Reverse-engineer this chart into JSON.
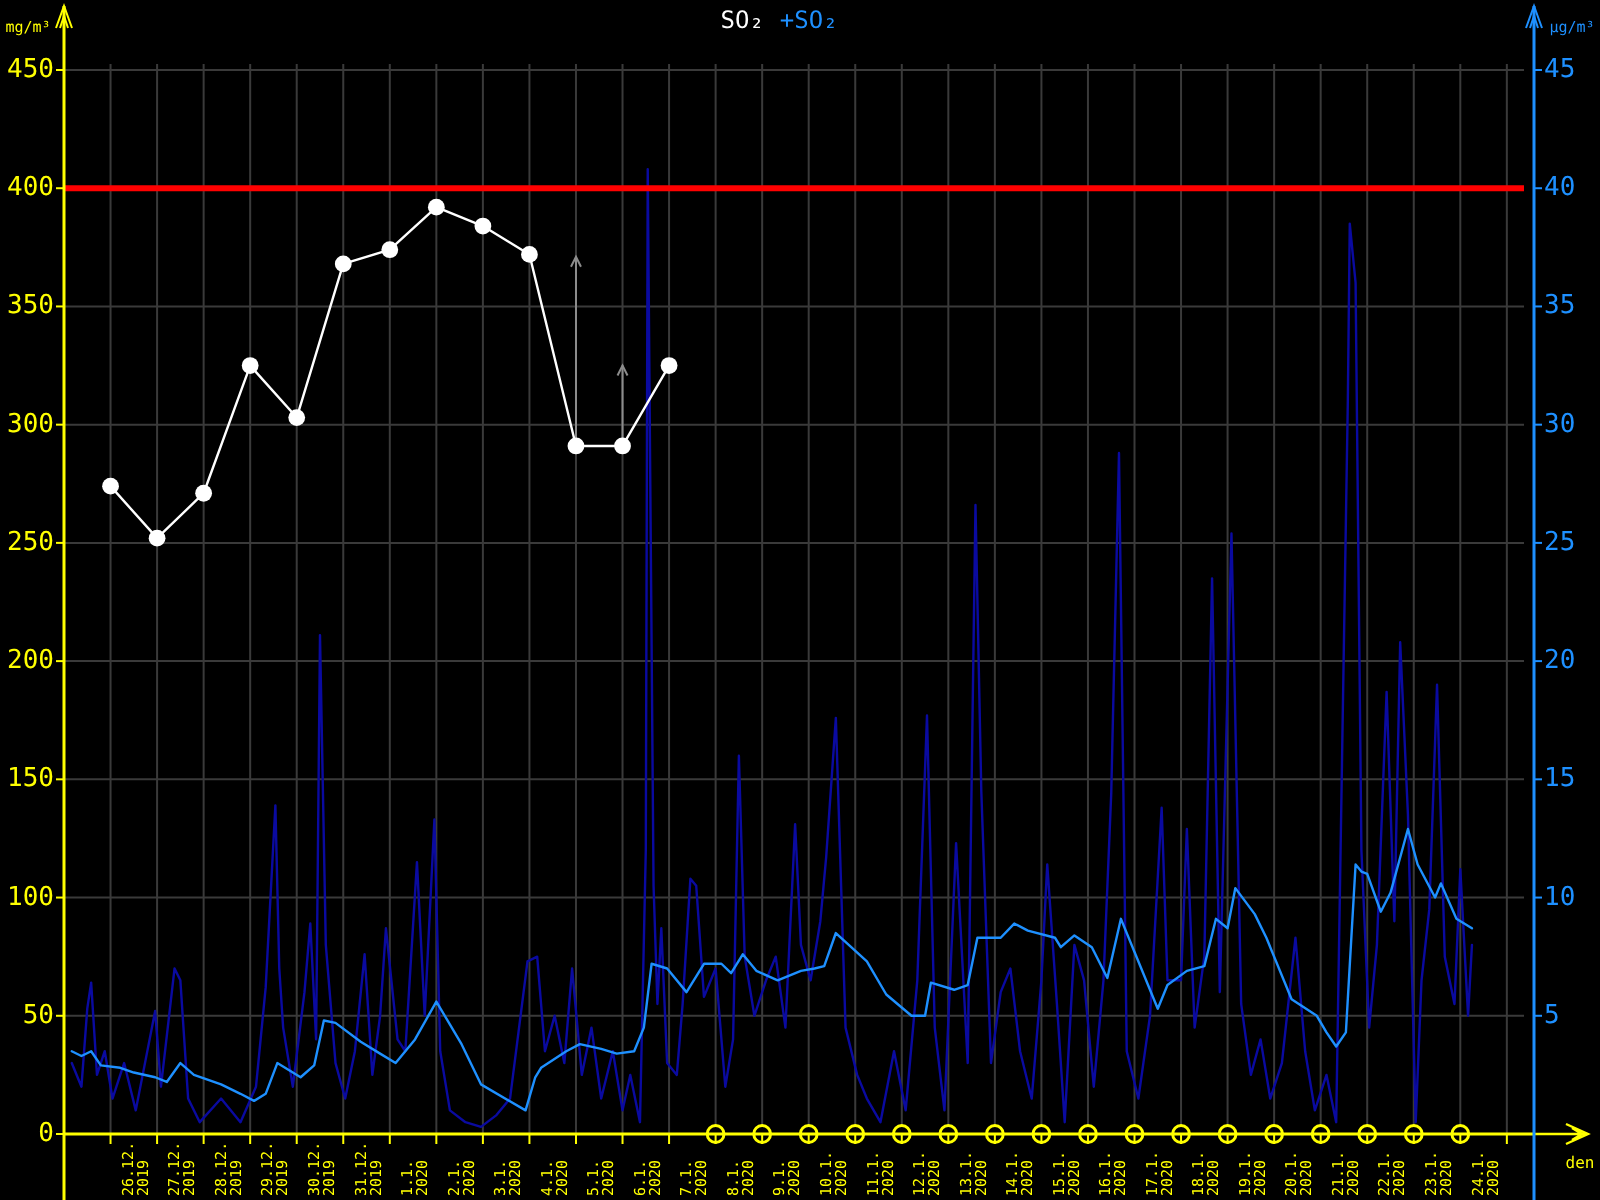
{
  "chart_data": {
    "type": "line",
    "legend": "top",
    "grid": true,
    "xlabel": "den",
    "ylabel": "mg/m³",
    "y2label": "µg/m³",
    "xlim": [
      "2019-12-25T00:00",
      "2020-01-25T14:00"
    ],
    "xticks": [
      {
        "value": "2019-12-26",
        "label": null
      },
      {
        "value": "2019-12-26T12:00",
        "label": "26.12.2019"
      },
      {
        "value": "2019-12-27",
        "label": null
      },
      {
        "value": "2019-12-27T12:00",
        "label": "27.12.2019"
      },
      {
        "value": "2019-12-28",
        "label": null
      },
      {
        "value": "2019-12-28T12:00",
        "label": "28.12.2019"
      },
      {
        "value": "2019-12-29",
        "label": null
      },
      {
        "value": "2019-12-29T12:00",
        "label": "29.12.2019"
      },
      {
        "value": "2019-12-30",
        "label": null
      },
      {
        "value": "2019-12-30T12:00",
        "label": "30.12.2019"
      },
      {
        "value": "2019-12-31",
        "label": null
      },
      {
        "value": "2019-12-31T12:00",
        "label": "31.12.2019"
      },
      {
        "value": "2020-01-01",
        "label": null
      },
      {
        "value": "2020-01-01T12:00",
        "label": "1.1.2020"
      },
      {
        "value": "2020-01-02",
        "label": null
      },
      {
        "value": "2020-01-02T12:00",
        "label": "2.1.2020"
      },
      {
        "value": "2020-01-03",
        "label": null
      },
      {
        "value": "2020-01-03T12:00",
        "label": "3.1.2020"
      },
      {
        "value": "2020-01-04",
        "label": null
      },
      {
        "value": "2020-01-04T12:00",
        "label": "4.1.2020"
      },
      {
        "value": "2020-01-05",
        "label": null
      },
      {
        "value": "2020-01-05T12:00",
        "label": "5.1.2020"
      },
      {
        "value": "2020-01-06",
        "label": null
      },
      {
        "value": "2020-01-06T12:00",
        "label": "6.1.2020"
      },
      {
        "value": "2020-01-07",
        "label": null
      },
      {
        "value": "2020-01-07T12:00",
        "label": "7.1.2020"
      },
      {
        "value": "2020-01-08",
        "label": null
      },
      {
        "value": "2020-01-08T12:00",
        "label": "8.1.2020"
      },
      {
        "value": "2020-01-09",
        "label": null
      },
      {
        "value": "2020-01-09T12:00",
        "label": "9.1.2020"
      },
      {
        "value": "2020-01-10",
        "label": null
      },
      {
        "value": "2020-01-10T12:00",
        "label": "10.1.2020"
      },
      {
        "value": "2020-01-11",
        "label": null
      },
      {
        "value": "2020-01-11T12:00",
        "label": "11.1.2020"
      },
      {
        "value": "2020-01-12",
        "label": null
      },
      {
        "value": "2020-01-12T12:00",
        "label": "12.1.2020"
      },
      {
        "value": "2020-01-13",
        "label": null
      },
      {
        "value": "2020-01-13T12:00",
        "label": "13.1.2020"
      },
      {
        "value": "2020-01-14",
        "label": null
      },
      {
        "value": "2020-01-14T12:00",
        "label": "14.1.2020"
      },
      {
        "value": "2020-01-15",
        "label": null
      },
      {
        "value": "2020-01-15T12:00",
        "label": "15.1.2020"
      },
      {
        "value": "2020-01-16",
        "label": null
      },
      {
        "value": "2020-01-16T12:00",
        "label": "16.1.2020"
      },
      {
        "value": "2020-01-17",
        "label": null
      },
      {
        "value": "2020-01-17T12:00",
        "label": "17.1.2020"
      },
      {
        "value": "2020-01-18",
        "label": null
      },
      {
        "value": "2020-01-18T12:00",
        "label": "18.1.2020"
      },
      {
        "value": "2020-01-19",
        "label": null
      },
      {
        "value": "2020-01-19T12:00",
        "label": "19.1.2020"
      },
      {
        "value": "2020-01-20",
        "label": null
      },
      {
        "value": "2020-01-20T12:00",
        "label": "20.1.2020"
      },
      {
        "value": "2020-01-21",
        "label": null
      },
      {
        "value": "2020-01-21T12:00",
        "label": "21.1.2020"
      },
      {
        "value": "2020-01-22",
        "label": null
      },
      {
        "value": "2020-01-22T12:00",
        "label": "22.1.2020"
      },
      {
        "value": "2020-01-23",
        "label": null
      },
      {
        "value": "2020-01-23T12:00",
        "label": "23.1.2020"
      },
      {
        "value": "2020-01-24",
        "label": null
      },
      {
        "value": "2020-01-24T12:00",
        "label": "24.1.2020"
      },
      {
        "value": "2020-01-25",
        "label": null
      }
    ],
    "ylim": [
      0,
      450
    ],
    "yticks": [
      0,
      50,
      100,
      150,
      200,
      250,
      300,
      350,
      400,
      450
    ],
    "y2lim": [
      0,
      45
    ],
    "y2ticks": [
      5,
      10,
      15,
      20,
      25,
      30,
      35,
      40,
      45
    ],
    "ref_lines": [
      {
        "axis": "y",
        "value": 400,
        "color": "#ff0000"
      }
    ],
    "series": [
      {
        "name": "SO₂",
        "color": "#ffffff",
        "marker": "circle",
        "x": [
          "2019-12-26",
          "2019-12-27",
          "2019-12-28",
          "2019-12-29",
          "2019-12-30",
          "2019-12-31",
          "2020-01-01",
          "2020-01-02",
          "2020-01-03",
          "2020-01-04",
          "2020-01-05",
          "2020-01-06",
          "2020-01-07"
        ],
        "values": [
          274,
          252,
          271,
          325,
          303,
          368,
          374,
          392,
          384,
          372,
          291,
          291,
          325
        ],
        "errors": [
          null,
          null,
          null,
          null,
          null,
          null,
          null,
          null,
          null,
          null,
          [
            291,
            371
          ],
          [
            291,
            325
          ],
          null
        ]
      },
      {
        "type": "scatter",
        "color": "#ffff00",
        "marker": "circle",
        "x": [
          "2020-01-08",
          "2020-01-09",
          "2020-01-10",
          "2020-01-11",
          "2020-01-12",
          "2020-01-13",
          "2020-01-14",
          "2020-01-15",
          "2020-01-16",
          "2020-01-17",
          "2020-01-18",
          "2020-01-19",
          "2020-01-20",
          "2020-01-21",
          "2020-01-22",
          "2020-01-23",
          "2020-01-24"
        ],
        "values": [
          0,
          0,
          0,
          0,
          0,
          0,
          0,
          0,
          0,
          0,
          0,
          0,
          0,
          0,
          0,
          0,
          0
        ]
      },
      {
        "axis": "y2",
        "color": "#0a0aa0",
        "x": [
          "2019-12-25T04:00",
          "2019-12-25T09:00",
          "2019-12-25T12:00",
          "2019-12-25T14:00",
          "2019-12-25T17:00",
          "2019-12-25T21:00",
          "2019-12-26T01:00",
          "2019-12-26T07:00",
          "2019-12-26T13:00",
          "2019-12-26T23:00",
          "2019-12-27T02:00",
          "2019-12-27T09:00",
          "2019-12-27T12:00",
          "2019-12-27T16:00",
          "2019-12-27T22:00",
          "2019-12-28T09:00",
          "2019-12-28T19:00",
          "2019-12-29T03:00",
          "2019-12-29T08:00",
          "2019-12-29T13:00",
          "2019-12-29T15:00",
          "2019-12-29T17:00",
          "2019-12-29T22:00",
          "2019-12-30T04:00",
          "2019-12-30T07:00",
          "2019-12-30T10:00",
          "2019-12-30T12:00",
          "2019-12-30T15:00",
          "2019-12-30T20:00",
          "2019-12-31T01:00",
          "2019-12-31T06:00",
          "2019-12-31T11:00",
          "2019-12-31T15:00",
          "2019-12-31T19:00",
          "2019-12-31T22:00",
          "2020-01-01T04:00",
          "2020-01-01T08:00",
          "2020-01-01T14:00",
          "2020-01-01T18:00",
          "2020-01-01T23:00",
          "2020-01-02T02:00",
          "2020-01-02T07:00",
          "2020-01-02T15:00",
          "2020-01-02T23:00",
          "2020-01-03T07:00",
          "2020-01-03T14:00",
          "2020-01-03T23:00",
          "2020-01-04T04:00",
          "2020-01-04T08:00",
          "2020-01-04T13:00",
          "2020-01-04T18:00",
          "2020-01-04T22:00",
          "2020-01-05T03:00",
          "2020-01-05T08:00",
          "2020-01-05T13:00",
          "2020-01-05T19:00",
          "2020-01-06T00:00",
          "2020-01-06T04:00",
          "2020-01-06T09:00",
          "2020-01-06T12:00",
          "2020-01-06T13:00",
          "2020-01-06T16:00",
          "2020-01-06T18:00",
          "2020-01-06T20:00",
          "2020-01-06T23:00",
          "2020-01-07T04:00",
          "2020-01-07T07:00",
          "2020-01-07T11:00",
          "2020-01-07T14:00",
          "2020-01-07T18:00",
          "2020-01-08T00:00",
          "2020-01-08T05:00",
          "2020-01-08T09:00",
          "2020-01-08T12:00",
          "2020-01-08T15:00",
          "2020-01-08T20:00",
          "2020-01-09T02:00",
          "2020-01-09T07:00",
          "2020-01-09T12:00",
          "2020-01-09T17:00",
          "2020-01-09T20:00",
          "2020-01-10T01:00",
          "2020-01-10T06:00",
          "2020-01-10T09:00",
          "2020-01-10T14:00",
          "2020-01-10T19:00",
          "2020-01-11T01:00",
          "2020-01-11T06:00",
          "2020-01-11T13:00",
          "2020-01-11T20:00",
          "2020-01-12T02:00",
          "2020-01-12T08:00",
          "2020-01-12T13:00",
          "2020-01-12T17:00",
          "2020-01-12T22:00",
          "2020-01-13T04:00",
          "2020-01-13T10:00",
          "2020-01-13T14:00",
          "2020-01-13T17:00",
          "2020-01-13T22:00",
          "2020-01-14T03:00",
          "2020-01-14T08:00",
          "2020-01-14T13:00",
          "2020-01-14T19:00",
          "2020-01-15T00:00",
          "2020-01-15T03:00",
          "2020-01-15T08:00",
          "2020-01-15T12:00",
          "2020-01-15T17:00",
          "2020-01-15T22:00",
          "2020-01-16T03:00",
          "2020-01-16T08:00",
          "2020-01-16T12:00",
          "2020-01-16T16:00",
          "2020-01-16T20:00",
          "2020-01-17T02:00",
          "2020-01-17T08:00",
          "2020-01-17T14:00",
          "2020-01-17T17:00",
          "2020-01-18T00:00",
          "2020-01-18T03:00",
          "2020-01-18T07:00",
          "2020-01-18T12:00",
          "2020-01-18T16:00",
          "2020-01-18T20:00",
          "2020-01-19T02:00",
          "2020-01-19T07:00",
          "2020-01-19T12:00",
          "2020-01-19T17:00",
          "2020-01-19T22:00",
          "2020-01-20T04:00",
          "2020-01-20T11:00",
          "2020-01-20T16:00",
          "2020-01-20T21:00",
          "2020-01-21T03:00",
          "2020-01-21T08:00",
          "2020-01-21T14:00",
          "2020-01-21T15:00",
          "2020-01-21T18:00",
          "2020-01-21T21:00",
          "2020-01-22T01:00",
          "2020-01-22T05:00",
          "2020-01-22T10:00",
          "2020-01-22T14:00",
          "2020-01-22T17:00",
          "2020-01-22T21:00",
          "2020-01-23T01:00",
          "2020-01-23T04:00",
          "2020-01-23T08:00",
          "2020-01-23T12:00",
          "2020-01-23T16:00",
          "2020-01-23T21:00",
          "2020-01-24T00:00",
          "2020-01-24T04:00",
          "2020-01-24T06:00"
        ],
        "values": [
          3.0,
          2.0,
          5.3,
          6.4,
          2.5,
          3.5,
          1.5,
          3.0,
          1.0,
          5.2,
          2.0,
          7.0,
          6.5,
          1.5,
          0.5,
          1.5,
          0.5,
          2.0,
          6.2,
          13.9,
          7.0,
          4.5,
          2.0,
          6.0,
          8.9,
          4.0,
          21.1,
          8.0,
          3.0,
          1.5,
          3.5,
          7.6,
          2.5,
          5.0,
          8.7,
          4.0,
          3.5,
          11.5,
          5.0,
          13.3,
          3.5,
          1.0,
          0.5,
          0.3,
          0.8,
          1.5,
          7.3,
          7.5,
          3.5,
          5.0,
          3.0,
          7.0,
          2.5,
          4.5,
          1.5,
          3.5,
          1.0,
          2.5,
          0.5,
          12.0,
          40.8,
          10.5,
          5.5,
          8.7,
          3.0,
          2.5,
          5.5,
          10.8,
          10.5,
          5.8,
          7.0,
          2.0,
          4.0,
          16.0,
          7.5,
          5.0,
          6.5,
          7.5,
          4.5,
          13.1,
          8.0,
          6.5,
          9.0,
          11.7,
          17.6,
          4.5,
          2.5,
          1.5,
          0.5,
          3.5,
          1.0,
          6.5,
          17.7,
          4.5,
          1.0,
          12.3,
          3.0,
          26.6,
          14.5,
          3.0,
          6.0,
          7.0,
          3.5,
          1.5,
          6.5,
          11.4,
          5.5,
          0.5,
          8.0,
          6.5,
          2.0,
          6.5,
          14.4,
          28.8,
          3.5,
          1.5,
          5.0,
          13.8,
          6.5,
          6.5,
          12.9,
          4.5,
          7.5,
          23.5,
          6.0,
          25.4,
          5.5,
          2.5,
          4.0,
          1.5,
          3.0,
          8.3,
          3.5,
          1.0,
          2.5,
          0.5,
          31.0,
          38.5,
          36.0,
          12.0,
          4.5,
          8.0,
          18.7,
          9.0,
          20.8,
          13.5,
          0.5,
          6.5,
          9.5,
          19.0,
          7.5,
          5.5,
          11.2,
          5.0,
          8.0
        ]
      },
      {
        "name": "+SO₂",
        "axis": "y2",
        "color": "#1e90ff",
        "x": [
          "2019-12-25T04:00",
          "2019-12-25T09:00",
          "2019-12-25T14:00",
          "2019-12-25T19:00",
          "2019-12-26T05:00",
          "2019-12-26T12:00",
          "2019-12-26T23:00",
          "2019-12-27T05:00",
          "2019-12-27T12:00",
          "2019-12-27T19:00",
          "2019-12-28T09:00",
          "2019-12-28T19:00",
          "2019-12-29T02:00",
          "2019-12-29T08:00",
          "2019-12-29T14:00",
          "2019-12-30T02:00",
          "2019-12-30T09:00",
          "2019-12-30T14:00",
          "2019-12-30T20:00",
          "2019-12-31T09:00",
          "2019-12-31T19:00",
          "2020-01-01T03:00",
          "2020-01-01T13:00",
          "2020-01-02T00:00",
          "2020-01-02T13:00",
          "2020-01-02T23:00",
          "2020-01-03T22:00",
          "2020-01-04T03:00",
          "2020-01-04T06:00",
          "2020-01-04T19:00",
          "2020-01-05T02:00",
          "2020-01-05T13:00",
          "2020-01-05T21:00",
          "2020-01-06T06:00",
          "2020-01-06T11:00",
          "2020-01-06T15:00",
          "2020-01-06T23:00",
          "2020-01-07T09:00",
          "2020-01-07T18:00",
          "2020-01-08T03:00",
          "2020-01-08T08:00",
          "2020-01-08T14:00",
          "2020-01-08T21:00",
          "2020-01-09T08:00",
          "2020-01-09T20:00",
          "2020-01-10T03:00",
          "2020-01-10T08:00",
          "2020-01-10T14:00",
          "2020-01-11T06:00",
          "2020-01-11T16:00",
          "2020-01-12T05:00",
          "2020-01-12T12:00",
          "2020-01-12T15:00",
          "2020-01-13T03:00",
          "2020-01-13T10:00",
          "2020-01-13T15:00",
          "2020-01-14T03:00",
          "2020-01-14T10:00",
          "2020-01-14T17:00",
          "2020-01-15T07:00",
          "2020-01-15T10:00",
          "2020-01-15T17:00",
          "2020-01-16T02:00",
          "2020-01-16T10:00",
          "2020-01-16T17:00",
          "2020-01-17T00:00",
          "2020-01-17T12:00",
          "2020-01-17T17:00",
          "2020-01-18T03:00",
          "2020-01-18T12:00",
          "2020-01-18T18:00",
          "2020-01-19T00:00",
          "2020-01-19T04:00",
          "2020-01-19T14:00",
          "2020-01-19T20:00",
          "2020-01-20T09:00",
          "2020-01-20T22:00",
          "2020-01-21T03:00",
          "2020-01-21T08:00",
          "2020-01-21T13:00",
          "2020-01-21T18:00",
          "2020-01-21T21:00",
          "2020-01-22T00:00",
          "2020-01-22T07:00",
          "2020-01-22T12:00",
          "2020-01-22T21:00",
          "2020-01-23T02:00",
          "2020-01-23T11:00",
          "2020-01-23T14:00",
          "2020-01-23T22:00",
          "2020-01-24T06:00"
        ],
        "values": [
          3.5,
          3.3,
          3.5,
          2.9,
          2.8,
          2.6,
          2.4,
          2.2,
          3.0,
          2.5,
          2.1,
          1.7,
          1.4,
          1.7,
          3.0,
          2.4,
          2.9,
          4.8,
          4.7,
          3.9,
          3.4,
          3.0,
          4.0,
          5.6,
          3.8,
          2.1,
          1.0,
          2.4,
          2.8,
          3.5,
          3.8,
          3.6,
          3.4,
          3.5,
          4.5,
          7.2,
          7.0,
          6.0,
          7.2,
          7.2,
          6.8,
          7.6,
          6.9,
          6.5,
          6.9,
          7.0,
          7.1,
          8.5,
          7.3,
          5.9,
          5.0,
          5.0,
          6.4,
          6.1,
          6.3,
          8.3,
          8.3,
          8.9,
          8.6,
          8.3,
          7.9,
          8.4,
          7.9,
          6.6,
          9.1,
          7.7,
          5.3,
          6.3,
          6.9,
          7.1,
          9.1,
          8.7,
          10.4,
          9.3,
          8.3,
          5.7,
          5.0,
          4.3,
          3.7,
          4.3,
          11.4,
          11.1,
          11.0,
          9.4,
          10.2,
          12.9,
          11.4,
          10.0,
          10.6,
          9.1,
          8.7
        ]
      }
    ]
  }
}
